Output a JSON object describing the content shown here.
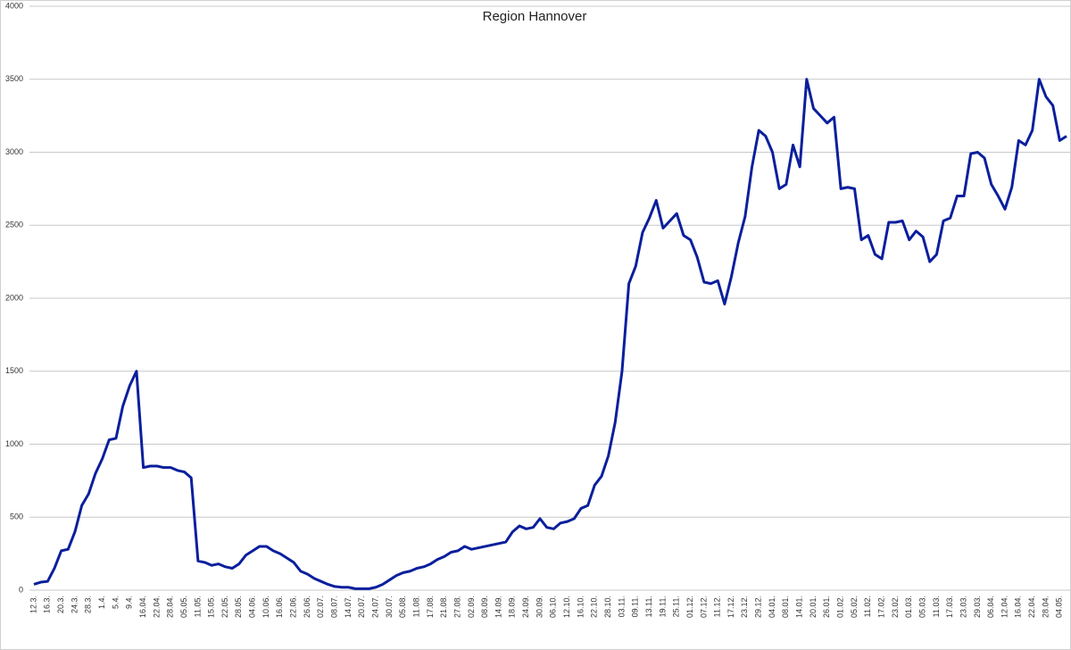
{
  "chart_data": {
    "type": "line",
    "title": "Region Hannover",
    "categories": [
      "12.3.",
      null,
      "16.3.",
      null,
      "20.3.",
      null,
      "24.3.",
      null,
      "28.3.",
      null,
      "1.4.",
      null,
      "5.4.",
      null,
      "9.4.",
      null,
      "16.04.",
      null,
      "22.04.",
      null,
      "28.04.",
      null,
      "05.05.",
      null,
      "11.05.",
      null,
      "15.05.",
      null,
      "22.05.",
      null,
      "28.05.",
      null,
      "04.06.",
      null,
      "10.06.",
      null,
      "16.06.",
      null,
      "22.06.",
      null,
      "26.06.",
      null,
      "02.07.",
      null,
      "08.07.",
      null,
      "14.07.",
      null,
      "20.07.",
      null,
      "24.07.",
      null,
      "30.07.",
      null,
      "05.08.",
      null,
      "11.08.",
      null,
      "17.08.",
      null,
      "21.08.",
      null,
      "27.08.",
      null,
      "02.09.",
      null,
      "08.09.",
      null,
      "14.09.",
      null,
      "18.09.",
      null,
      "24.09.",
      null,
      "30.09.",
      null,
      "06.10.",
      null,
      "12.10.",
      null,
      "16.10.",
      null,
      "22.10.",
      null,
      "28.10.",
      null,
      "03.11.",
      null,
      "09.11.",
      null,
      "13.11.",
      null,
      "19.11.",
      null,
      "25.11.",
      null,
      "01.12.",
      null,
      "07.12.",
      null,
      "11.12.",
      null,
      "17.12.",
      null,
      "23.12.",
      null,
      "29.12.",
      null,
      "04.01.",
      null,
      "08.01.",
      null,
      "14.01.",
      null,
      "20.01.",
      null,
      "26.01.",
      null,
      "01.02.",
      null,
      "05.02.",
      null,
      "11.02.",
      null,
      "17.02.",
      null,
      "23.02.",
      null,
      "01.03.",
      null,
      "05.03.",
      null,
      "11.03.",
      null,
      "17.03.",
      null,
      "23.03.",
      null,
      "29.03.",
      null,
      "06.04.",
      null,
      "12.04.",
      null,
      "16.04.",
      null,
      "22.04.",
      null,
      "28.04.",
      null,
      "04.05.",
      null
    ],
    "series": [
      {
        "color": "#0a1f9c",
        "values": [
          40,
          55,
          60,
          150,
          270,
          280,
          400,
          580,
          660,
          800,
          900,
          1030,
          1040,
          1260,
          1400,
          1500,
          840,
          850,
          850,
          840,
          840,
          820,
          810,
          770,
          200,
          190,
          170,
          180,
          160,
          150,
          180,
          240,
          270,
          300,
          300,
          270,
          250,
          220,
          190,
          130,
          110,
          80,
          60,
          40,
          25,
          20,
          20,
          10,
          10,
          10,
          20,
          40,
          70,
          100,
          120,
          130,
          150,
          160,
          180,
          210,
          230,
          260,
          270,
          300,
          280,
          290,
          300,
          310,
          320,
          330,
          400,
          440,
          420,
          430,
          490,
          430,
          420,
          460,
          470,
          490,
          560,
          580,
          720,
          780,
          920,
          1150,
          1500,
          2100,
          2220,
          2450,
          2550,
          2670,
          2480,
          2530,
          2580,
          2430,
          2400,
          2280,
          2110,
          2100,
          2120,
          1960,
          2150,
          2380,
          2560,
          2900,
          3150,
          3110,
          3000,
          2750,
          2780,
          3050,
          2900,
          3500,
          3300,
          3250,
          3200,
          3240,
          2750,
          2760,
          2750,
          2400,
          2430,
          2300,
          2270,
          2520,
          2520,
          2530,
          2400,
          2460,
          2420,
          2250,
          2300,
          2530,
          2550,
          2700,
          2700,
          2990,
          3000,
          2960,
          2780,
          2700,
          2610,
          2760,
          3080,
          3050,
          3150,
          3500,
          3380,
          3320,
          3080,
          3110
        ]
      }
    ],
    "ylim": [
      0,
      4000
    ],
    "yticks": [
      0,
      500,
      1000,
      1500,
      2000,
      2500,
      3000,
      3500,
      4000
    ],
    "grid": true
  }
}
